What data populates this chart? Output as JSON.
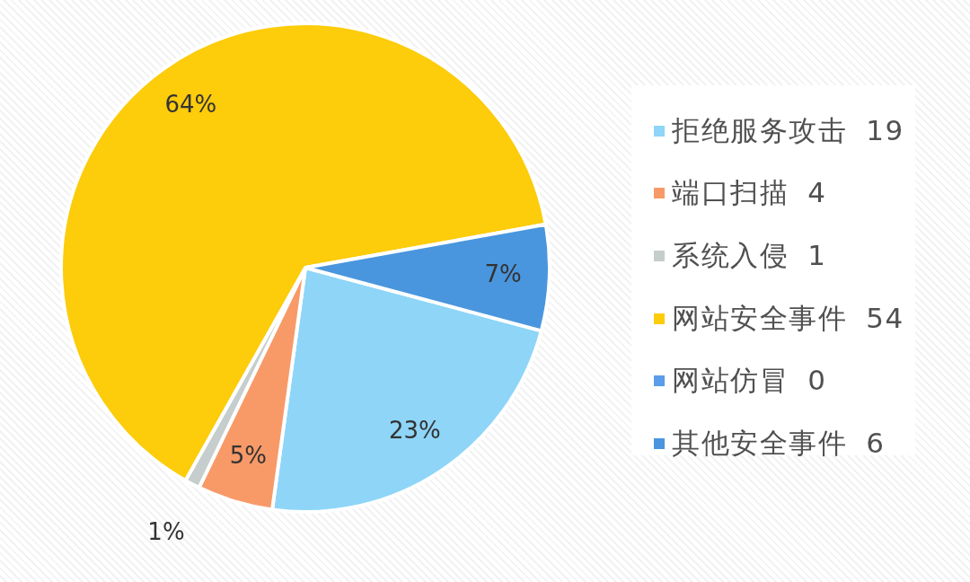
{
  "chart_data": {
    "type": "pie",
    "categories": [
      "拒绝服务攻击 19",
      "端口扫描 4",
      "系统入侵 1",
      "网站安全事件 54",
      "网站仿冒 0",
      "其他安全事件 6"
    ],
    "values": [
      23,
      5,
      1,
      64,
      0,
      7
    ],
    "colors": [
      "#8ed5f8",
      "#f89a68",
      "#c6cdcd",
      "#fdcc0a",
      "#5b9de8",
      "#4a96de"
    ],
    "value_labels": [
      "23%",
      "5%",
      "1%",
      "64%",
      null,
      "7%"
    ],
    "legend": "right"
  }
}
